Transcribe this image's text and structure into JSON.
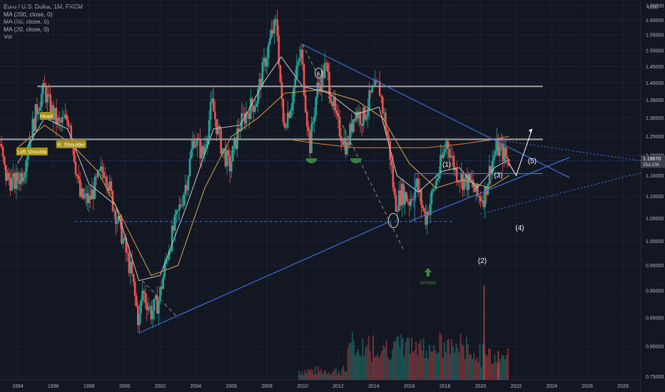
{
  "legend": {
    "title": "Euro / U.S. Dollar, 1M, FXCM",
    "indicators": [
      "MA (200, close, 0)",
      "MA (50, close, 0)",
      "MA (20, close, 0)",
      "Vol"
    ]
  },
  "currency_label": "USD",
  "price_badge": {
    "value": "1.18670",
    "countdown": "25d 23h"
  },
  "annotations": {
    "head": "Head",
    "left_shoulder": "Left Shoulde",
    "right_shoulder": "R. Shoulder",
    "spring": "SPRING",
    "wave_1": "(1)",
    "wave_2": "(2)",
    "wave_3": "(3)",
    "wave_4": "(4)",
    "wave_5": "(5)",
    "circle_label": "A"
  },
  "colors": {
    "background": "#131722",
    "up": "#26a69a",
    "down": "#ef5350",
    "ma200": "#e07b39",
    "ma50": "#d8a84a",
    "ma20": "#c9c9c9",
    "trend": "#3d6fd8",
    "horizontal": "#9a9a9a",
    "annotation_box": "#a88f0f",
    "spring": "#3f8e3f"
  },
  "chart_data": {
    "type": "candlestick",
    "symbol": "Euro / U.S. Dollar",
    "interval": "1M",
    "yscale": "log",
    "ylim": [
      0.745,
      1.67
    ],
    "xlim": [
      1993.0,
      2029.0
    ],
    "yticks": [
      "1.65000",
      "1.60000",
      "1.55000",
      "1.50000",
      "1.45000",
      "1.40000",
      "1.35000",
      "1.30000",
      "1.25000",
      "1.20000",
      "1.15000",
      "1.10000",
      "1.05000",
      "1.00000",
      "0.95000",
      "0.90000",
      "0.85000",
      "0.80000",
      "0.75000"
    ],
    "xticks": [
      "1994",
      "1996",
      "1998",
      "2000",
      "2002",
      "2004",
      "2006",
      "2008",
      "2010",
      "2012",
      "2014",
      "2016",
      "2018",
      "2020",
      "2022",
      "2024",
      "2026",
      "2028"
    ],
    "price_path": [
      [
        1993.0,
        1.23
      ],
      [
        1993.3,
        1.15
      ],
      [
        1993.8,
        1.13
      ],
      [
        1994.3,
        1.16
      ],
      [
        1994.7,
        1.25
      ],
      [
        1995.2,
        1.35
      ],
      [
        1995.5,
        1.38
      ],
      [
        1995.8,
        1.33
      ],
      [
        1996.3,
        1.28
      ],
      [
        1996.9,
        1.3
      ],
      [
        1997.2,
        1.19
      ],
      [
        1997.5,
        1.1
      ],
      [
        1998.0,
        1.09
      ],
      [
        1998.6,
        1.15
      ],
      [
        1998.9,
        1.17
      ],
      [
        1999.3,
        1.09
      ],
      [
        1999.8,
        1.02
      ],
      [
        2000.4,
        0.93
      ],
      [
        2000.8,
        0.84
      ],
      [
        2001.0,
        0.9
      ],
      [
        2001.5,
        0.86
      ],
      [
        2001.9,
        0.88
      ],
      [
        2002.5,
        0.99
      ],
      [
        2003.0,
        1.06
      ],
      [
        2003.5,
        1.14
      ],
      [
        2003.9,
        1.25
      ],
      [
        2004.4,
        1.2
      ],
      [
        2004.9,
        1.34
      ],
      [
        2005.4,
        1.23
      ],
      [
        2005.9,
        1.17
      ],
      [
        2006.4,
        1.27
      ],
      [
        2006.9,
        1.32
      ],
      [
        2007.4,
        1.35
      ],
      [
        2007.9,
        1.47
      ],
      [
        2008.3,
        1.56
      ],
      [
        2008.55,
        1.59
      ],
      [
        2008.9,
        1.28
      ],
      [
        2009.3,
        1.33
      ],
      [
        2009.9,
        1.5
      ],
      [
        2010.4,
        1.22
      ],
      [
        2010.8,
        1.38
      ],
      [
        2011.3,
        1.45
      ],
      [
        2011.9,
        1.29
      ],
      [
        2012.5,
        1.22
      ],
      [
        2012.9,
        1.32
      ],
      [
        2013.4,
        1.3
      ],
      [
        2013.9,
        1.37
      ],
      [
        2014.3,
        1.39
      ],
      [
        2014.9,
        1.21
      ],
      [
        2015.2,
        1.08
      ],
      [
        2015.6,
        1.11
      ],
      [
        2016.0,
        1.09
      ],
      [
        2016.4,
        1.13
      ],
      [
        2016.9,
        1.05
      ],
      [
        2017.4,
        1.12
      ],
      [
        2017.9,
        1.2
      ],
      [
        2018.1,
        1.24
      ],
      [
        2018.6,
        1.16
      ],
      [
        2019.0,
        1.14
      ],
      [
        2019.5,
        1.13
      ],
      [
        2019.8,
        1.1
      ],
      [
        2020.2,
        1.1
      ],
      [
        2020.6,
        1.18
      ],
      [
        2020.9,
        1.22
      ],
      [
        2021.2,
        1.21
      ],
      [
        2021.5,
        1.19
      ],
      [
        2021.65,
        1.187
      ]
    ],
    "volume_spikes": [
      [
        2020.2,
        0.98
      ],
      [
        2021.0,
        0.3
      ]
    ],
    "moving_averages": [
      {
        "name": "MA (200, close, 0)",
        "points": [
          [
            2009.5,
            1.24
          ],
          [
            2011.0,
            1.23
          ],
          [
            2013.0,
            1.22
          ],
          [
            2015.0,
            1.22
          ],
          [
            2017.0,
            1.22
          ],
          [
            2019.0,
            1.23
          ],
          [
            2020.5,
            1.24
          ],
          [
            2021.6,
            1.25
          ]
        ]
      },
      {
        "name": "MA (50, close, 0)",
        "points": [
          [
            1994.0,
            1.22
          ],
          [
            1995.5,
            1.28
          ],
          [
            1997.0,
            1.23
          ],
          [
            1998.5,
            1.16
          ],
          [
            2000.0,
            1.04
          ],
          [
            2001.5,
            0.93
          ],
          [
            2003.0,
            0.95
          ],
          [
            2004.5,
            1.12
          ],
          [
            2006.0,
            1.25
          ],
          [
            2007.5,
            1.3
          ],
          [
            2009.0,
            1.37
          ],
          [
            2011.0,
            1.38
          ],
          [
            2013.0,
            1.35
          ],
          [
            2014.5,
            1.3
          ],
          [
            2016.0,
            1.18
          ],
          [
            2017.5,
            1.12
          ],
          [
            2019.0,
            1.14
          ],
          [
            2020.5,
            1.12
          ],
          [
            2021.6,
            1.15
          ]
        ]
      },
      {
        "name": "MA (20, close, 0)",
        "points": [
          [
            1994.0,
            1.18
          ],
          [
            1995.5,
            1.3
          ],
          [
            1996.8,
            1.27
          ],
          [
            1998.0,
            1.13
          ],
          [
            1999.5,
            1.08
          ],
          [
            2000.8,
            0.92
          ],
          [
            2002.0,
            0.93
          ],
          [
            2003.5,
            1.08
          ],
          [
            2005.0,
            1.27
          ],
          [
            2006.5,
            1.28
          ],
          [
            2007.8,
            1.4
          ],
          [
            2008.8,
            1.48
          ],
          [
            2010.0,
            1.39
          ],
          [
            2011.5,
            1.37
          ],
          [
            2013.0,
            1.31
          ],
          [
            2014.3,
            1.33
          ],
          [
            2015.3,
            1.15
          ],
          [
            2016.5,
            1.11
          ],
          [
            2017.8,
            1.16
          ],
          [
            2018.8,
            1.17
          ],
          [
            2019.8,
            1.12
          ],
          [
            2020.8,
            1.17
          ],
          [
            2021.6,
            1.19
          ]
        ]
      }
    ],
    "horizontal_levels": [
      1.39,
      1.242
    ],
    "support_level": 1.043,
    "range_box_level": 1.155,
    "trendlines": [
      {
        "from": [
          2000.8,
          0.823
        ],
        "to": [
          2014.9,
          1.043
        ]
      },
      {
        "from": [
          2010.0,
          1.52
        ],
        "to": [
          2025.0,
          1.145
        ]
      },
      {
        "from": [
          2016.0,
          1.043
        ],
        "to": [
          2025.0,
          1.195
        ]
      },
      {
        "from": [
          2020.0,
          1.06
        ],
        "to": [
          2029.0,
          1.157
        ]
      },
      {
        "from": [
          2021.0,
          1.24
        ],
        "to": [
          2029.0,
          1.187
        ]
      }
    ],
    "projection_path": [
      [
        2021.6,
        1.18
      ],
      [
        2022.0,
        1.15
      ],
      [
        2022.9,
        1.27
      ]
    ],
    "last_price": 1.1867
  }
}
